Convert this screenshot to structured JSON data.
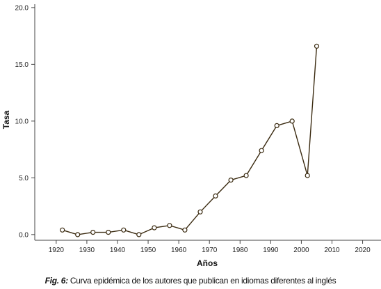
{
  "chart_data": {
    "type": "line",
    "title": "",
    "xlabel": "Años",
    "ylabel": "Tasa",
    "xlim": [
      1913,
      2026
    ],
    "ylim": [
      -0.5,
      20.3
    ],
    "x_ticks": [
      1920,
      1930,
      1940,
      1950,
      1960,
      1970,
      1980,
      1990,
      2000,
      2010,
      2020
    ],
    "y_ticks": [
      0.0,
      5.0,
      10.0,
      15.0,
      20.0
    ],
    "y_tick_labels": [
      "0.0",
      "5.0",
      "10.0",
      "15.0",
      "20.0"
    ],
    "grid": false,
    "legend": "none",
    "line_color": "#3a2a10",
    "marker": "open-circle",
    "series": [
      {
        "x": [
          1922,
          1927,
          1932,
          1937,
          1942,
          1947,
          1952,
          1957,
          1962,
          1967,
          1972,
          1977,
          1982,
          1987,
          1992,
          1997,
          2002,
          2005
        ],
        "values": [
          0.4,
          0.0,
          0.2,
          0.2,
          0.4,
          0.0,
          0.6,
          0.8,
          0.4,
          2.0,
          3.4,
          4.8,
          5.2,
          7.4,
          9.6,
          10.0,
          5.2,
          16.6
        ]
      }
    ]
  },
  "caption": {
    "label": "Fig. 6:",
    "text": "Curva epidémica de los autores que publican en idiomas diferentes al inglés"
  }
}
